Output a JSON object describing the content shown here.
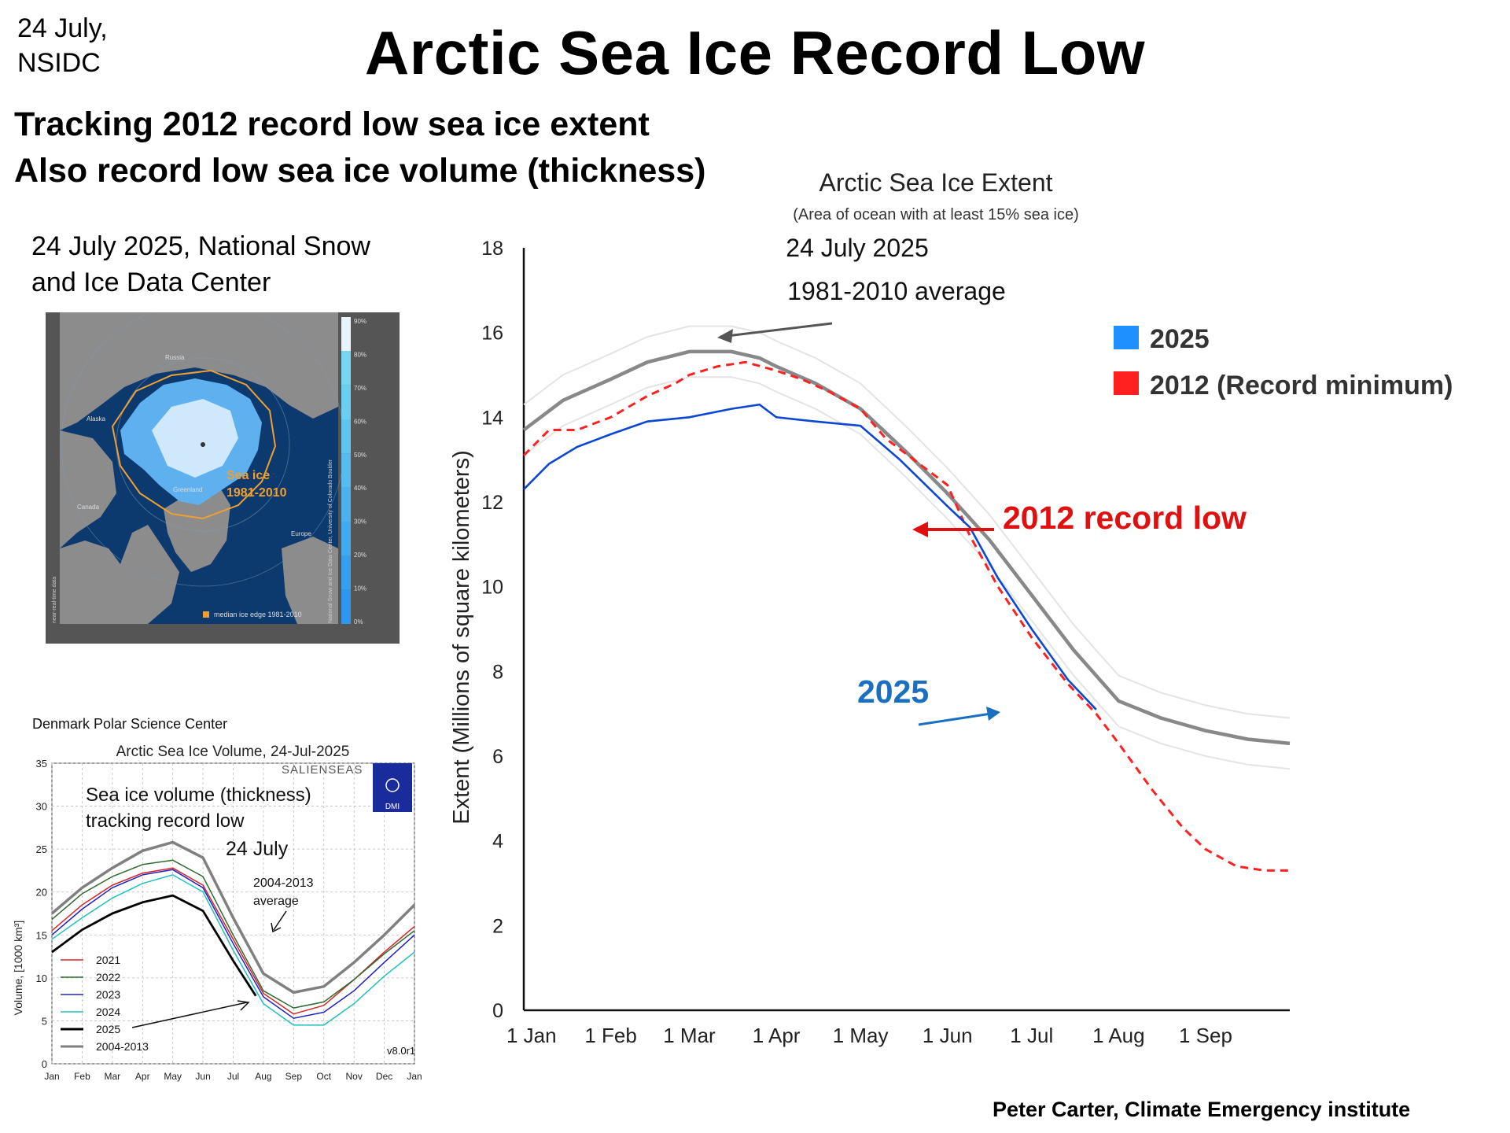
{
  "header": {
    "corner_note_line1": "24 July,",
    "corner_note_line2": "NSIDC",
    "title": "Arctic Sea Ice Record Low",
    "subtitle_line1": "Tracking 2012 record low sea ice extent",
    "subtitle_line2": "Also record low sea ice volume (thickness)",
    "credit": "Peter Carter, Climate Emergency institute"
  },
  "map_panel": {
    "caption_line1": "24 July 2025,  National Snow",
    "caption_line2": "and Ice Data Center",
    "labels": {
      "russia": "Russia",
      "alaska": "Alaska",
      "canada": "Canada",
      "greenland": "Greenland",
      "europe": "Europe",
      "sea_ice_line1": "Sea ice",
      "sea_ice_line2": "1981-2010",
      "legend": "median ice edge 1981-2010",
      "side_left": "near-real-time data",
      "side_right": "National Snow and Ice Data Center, University of Colorado Boulder"
    },
    "colorbar_ticks": [
      "90%",
      "80%",
      "70%",
      "60%",
      "50%",
      "40%",
      "30%",
      "20%",
      "10%",
      "0%"
    ],
    "colors": {
      "ocean": "#0d3a6e",
      "land": "#8c8c8c",
      "frame": "#555555",
      "edge": "#f0a030"
    }
  },
  "chart_data": [
    {
      "type": "line",
      "title": "Arctic Sea Ice Extent",
      "subtitle": "(Area of ocean with at least 15% sea ice)",
      "ylabel": "Extent (Millions of square kilometers)",
      "xlabel": "",
      "ylim": [
        0,
        18
      ],
      "yticks": [
        0,
        2,
        4,
        6,
        8,
        10,
        12,
        14,
        16,
        18
      ],
      "xticks": [
        {
          "label": "1 Jan",
          "day": 1
        },
        {
          "label": "1 Feb",
          "day": 32
        },
        {
          "label": "1 Mar",
          "day": 60
        },
        {
          "label": "1 Apr",
          "day": 91
        },
        {
          "label": "1 May",
          "day": 121
        },
        {
          "label": "1 Jun",
          "day": 152
        },
        {
          "label": "1 Jul",
          "day": 182
        },
        {
          "label": "1 Aug",
          "day": 213
        },
        {
          "label": "1 Sep",
          "day": 244
        }
      ],
      "xlim_days": [
        1,
        274
      ],
      "legend": {
        "position": "right",
        "entries": [
          {
            "label": "2025",
            "color": "#1e90ff"
          },
          {
            "label": "2012 (Record minimum)",
            "color": "#ff2020"
          }
        ]
      },
      "annotations": {
        "date": "24 July 2025",
        "average": "1981-2010 average",
        "record": "2012 record low",
        "current": "2025"
      },
      "series": [
        {
          "key": "average",
          "color": "#888888",
          "points": [
            [
              1,
              13.7
            ],
            [
              15,
              14.4
            ],
            [
              32,
              14.9
            ],
            [
              45,
              15.3
            ],
            [
              60,
              15.55
            ],
            [
              75,
              15.55
            ],
            [
              85,
              15.4
            ],
            [
              91,
              15.2
            ],
            [
              105,
              14.8
            ],
            [
              121,
              14.2
            ],
            [
              137,
              13.2
            ],
            [
              152,
              12.2
            ],
            [
              167,
              11.1
            ],
            [
              182,
              9.8
            ],
            [
              197,
              8.5
            ],
            [
              213,
              7.3
            ],
            [
              228,
              6.9
            ],
            [
              244,
              6.6
            ],
            [
              259,
              6.4
            ],
            [
              274,
              6.3
            ]
          ]
        },
        {
          "key": "2012",
          "color": "#ff2020",
          "points": [
            [
              1,
              13.1
            ],
            [
              10,
              13.7
            ],
            [
              20,
              13.7
            ],
            [
              32,
              14.0
            ],
            [
              45,
              14.5
            ],
            [
              55,
              14.8
            ],
            [
              60,
              15.0
            ],
            [
              70,
              15.2
            ],
            [
              80,
              15.3
            ],
            [
              91,
              15.1
            ],
            [
              100,
              14.9
            ],
            [
              110,
              14.6
            ],
            [
              121,
              14.2
            ],
            [
              130,
              13.5
            ],
            [
              140,
              13.0
            ],
            [
              152,
              12.4
            ],
            [
              160,
              11.2
            ],
            [
              170,
              10.0
            ],
            [
              182,
              8.8
            ],
            [
              195,
              7.7
            ],
            [
              205,
              7.0
            ],
            [
              213,
              6.3
            ],
            [
              225,
              5.2
            ],
            [
              236,
              4.3
            ],
            [
              244,
              3.8
            ],
            [
              255,
              3.4
            ],
            [
              265,
              3.3
            ],
            [
              274,
              3.3
            ]
          ]
        },
        {
          "key": "2025",
          "color": "#0b46d4",
          "points": [
            [
              1,
              12.3
            ],
            [
              10,
              12.9
            ],
            [
              20,
              13.3
            ],
            [
              32,
              13.6
            ],
            [
              45,
              13.9
            ],
            [
              60,
              14.0
            ],
            [
              75,
              14.2
            ],
            [
              85,
              14.3
            ],
            [
              91,
              14.0
            ],
            [
              105,
              13.9
            ],
            [
              121,
              13.8
            ],
            [
              135,
              13.0
            ],
            [
              152,
              11.9
            ],
            [
              160,
              11.4
            ],
            [
              170,
              10.2
            ],
            [
              182,
              9.0
            ],
            [
              195,
              7.8
            ],
            [
              205,
              7.1
            ]
          ]
        }
      ]
    },
    {
      "type": "line",
      "source": "Denmark Polar Science Center",
      "title": "Arctic Sea Ice Volume, 24-Jul-2025",
      "ylabel": "Volume, [1000 km³]",
      "ylim": [
        0,
        35
      ],
      "yticks": [
        0,
        5,
        10,
        15,
        20,
        25,
        30,
        35
      ],
      "xticks": [
        "Jan",
        "Feb",
        "Mar",
        "Apr",
        "May",
        "Jun",
        "Jul",
        "Aug",
        "Sep",
        "Oct",
        "Nov",
        "Dec",
        "Jan"
      ],
      "annotations": {
        "note_line1": "Sea ice volume (thickness)",
        "note_line2": "tracking record low",
        "date": "24 July",
        "avg_line1": "2004-2013",
        "avg_line2": "average",
        "version": "v8.0r1",
        "brand": "SALIENSEAS",
        "logo": "DMI"
      },
      "legend": [
        {
          "label": "2021",
          "color": "#d62728"
        },
        {
          "label": "2022",
          "color": "#2e6b2e"
        },
        {
          "label": "2023",
          "color": "#2020c0"
        },
        {
          "label": "2024",
          "color": "#20c0c0"
        },
        {
          "label": "2025",
          "color": "#000000"
        },
        {
          "label": "2004-2013",
          "color": "#808080"
        }
      ],
      "series": [
        {
          "name": "2004-2013",
          "color": "#808080",
          "width": 3.5,
          "points": [
            [
              0,
              17.5
            ],
            [
              1,
              20.5
            ],
            [
              2,
              22.8
            ],
            [
              3,
              24.8
            ],
            [
              4,
              25.8
            ],
            [
              5,
              24.0
            ],
            [
              6,
              17.0
            ],
            [
              7,
              10.5
            ],
            [
              8,
              8.3
            ],
            [
              9,
              9.0
            ],
            [
              10,
              11.8
            ],
            [
              11,
              15.0
            ],
            [
              12,
              18.5
            ]
          ]
        },
        {
          "name": "2021",
          "color": "#d62728",
          "width": 1.5,
          "points": [
            [
              0,
              15.5
            ],
            [
              1,
              18.5
            ],
            [
              2,
              20.8
            ],
            [
              3,
              22.2
            ],
            [
              4,
              22.8
            ],
            [
              5,
              20.8
            ],
            [
              6,
              14.5
            ],
            [
              7,
              8.2
            ],
            [
              8,
              5.8
            ],
            [
              9,
              6.8
            ],
            [
              10,
              9.8
            ],
            [
              11,
              13.0
            ],
            [
              12,
              16.0
            ]
          ]
        },
        {
          "name": "2022",
          "color": "#2e6b2e",
          "width": 1.5,
          "points": [
            [
              0,
              16.8
            ],
            [
              1,
              19.8
            ],
            [
              2,
              21.8
            ],
            [
              3,
              23.2
            ],
            [
              4,
              23.7
            ],
            [
              5,
              21.8
            ],
            [
              6,
              15.0
            ],
            [
              7,
              8.5
            ],
            [
              8,
              6.5
            ],
            [
              9,
              7.2
            ],
            [
              10,
              9.8
            ],
            [
              11,
              12.8
            ],
            [
              12,
              15.5
            ]
          ]
        },
        {
          "name": "2023",
          "color": "#2020c0",
          "width": 1.5,
          "points": [
            [
              0,
              15.0
            ],
            [
              1,
              18.0
            ],
            [
              2,
              20.5
            ],
            [
              3,
              22.0
            ],
            [
              4,
              22.6
            ],
            [
              5,
              20.5
            ],
            [
              6,
              14.0
            ],
            [
              7,
              7.8
            ],
            [
              8,
              5.3
            ],
            [
              9,
              6.0
            ],
            [
              10,
              8.5
            ],
            [
              11,
              11.8
            ],
            [
              12,
              15.0
            ]
          ]
        },
        {
          "name": "2024",
          "color": "#20c0c0",
          "width": 1.5,
          "points": [
            [
              0,
              14.5
            ],
            [
              1,
              17.0
            ],
            [
              2,
              19.3
            ],
            [
              3,
              21.0
            ],
            [
              4,
              22.0
            ],
            [
              5,
              20.0
            ],
            [
              6,
              13.2
            ],
            [
              7,
              7.0
            ],
            [
              8,
              4.5
            ],
            [
              9,
              4.5
            ],
            [
              10,
              7.0
            ],
            [
              11,
              10.2
            ],
            [
              12,
              13.0
            ]
          ]
        },
        {
          "name": "2025",
          "color": "#000000",
          "width": 2.8,
          "points": [
            [
              0,
              13.0
            ],
            [
              1,
              15.6
            ],
            [
              2,
              17.5
            ],
            [
              3,
              18.8
            ],
            [
              4,
              19.6
            ],
            [
              5,
              17.8
            ],
            [
              6,
              12.0
            ],
            [
              6.75,
              7.9
            ]
          ]
        }
      ]
    }
  ]
}
